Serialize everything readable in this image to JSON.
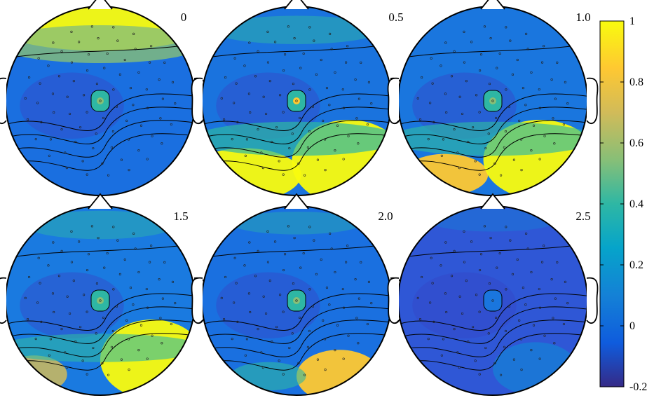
{
  "chart_data": {
    "type": "heatmap",
    "subtype": "scalp-topography",
    "title": "",
    "panels": [
      {
        "label": "0",
        "level_map": "frontal yellow band, broad low (~0.05) central-left region, small peak at Cz"
      },
      {
        "label": "0.5",
        "level_map": "high yellow bottom/posterior region, low blue upper center, peak at Cz"
      },
      {
        "label": "1.0",
        "level_map": "high yellow bottom/posterior region, low blue upper, peak at Cz"
      },
      {
        "label": "1.5",
        "level_map": "high yellow bottom-right region, mostly blue elsewhere, peak at Cz"
      },
      {
        "label": "2.0",
        "level_map": "moderate yellow bottom-right, mostly blue, peak at Cz"
      },
      {
        "label": "2.5",
        "level_map": "almost uniformly low blue, slight green bottom-right"
      }
    ],
    "colorbar": {
      "colormap": "parula",
      "range": [
        -0.2,
        1
      ],
      "ticks": [
        "1",
        "0.8",
        "0.6",
        "0.4",
        "0.2",
        "0",
        "-0.2"
      ],
      "tick_values": [
        1,
        0.8,
        0.6,
        0.4,
        0.2,
        0,
        -0.2
      ]
    },
    "grid": false,
    "legend": "right"
  }
}
